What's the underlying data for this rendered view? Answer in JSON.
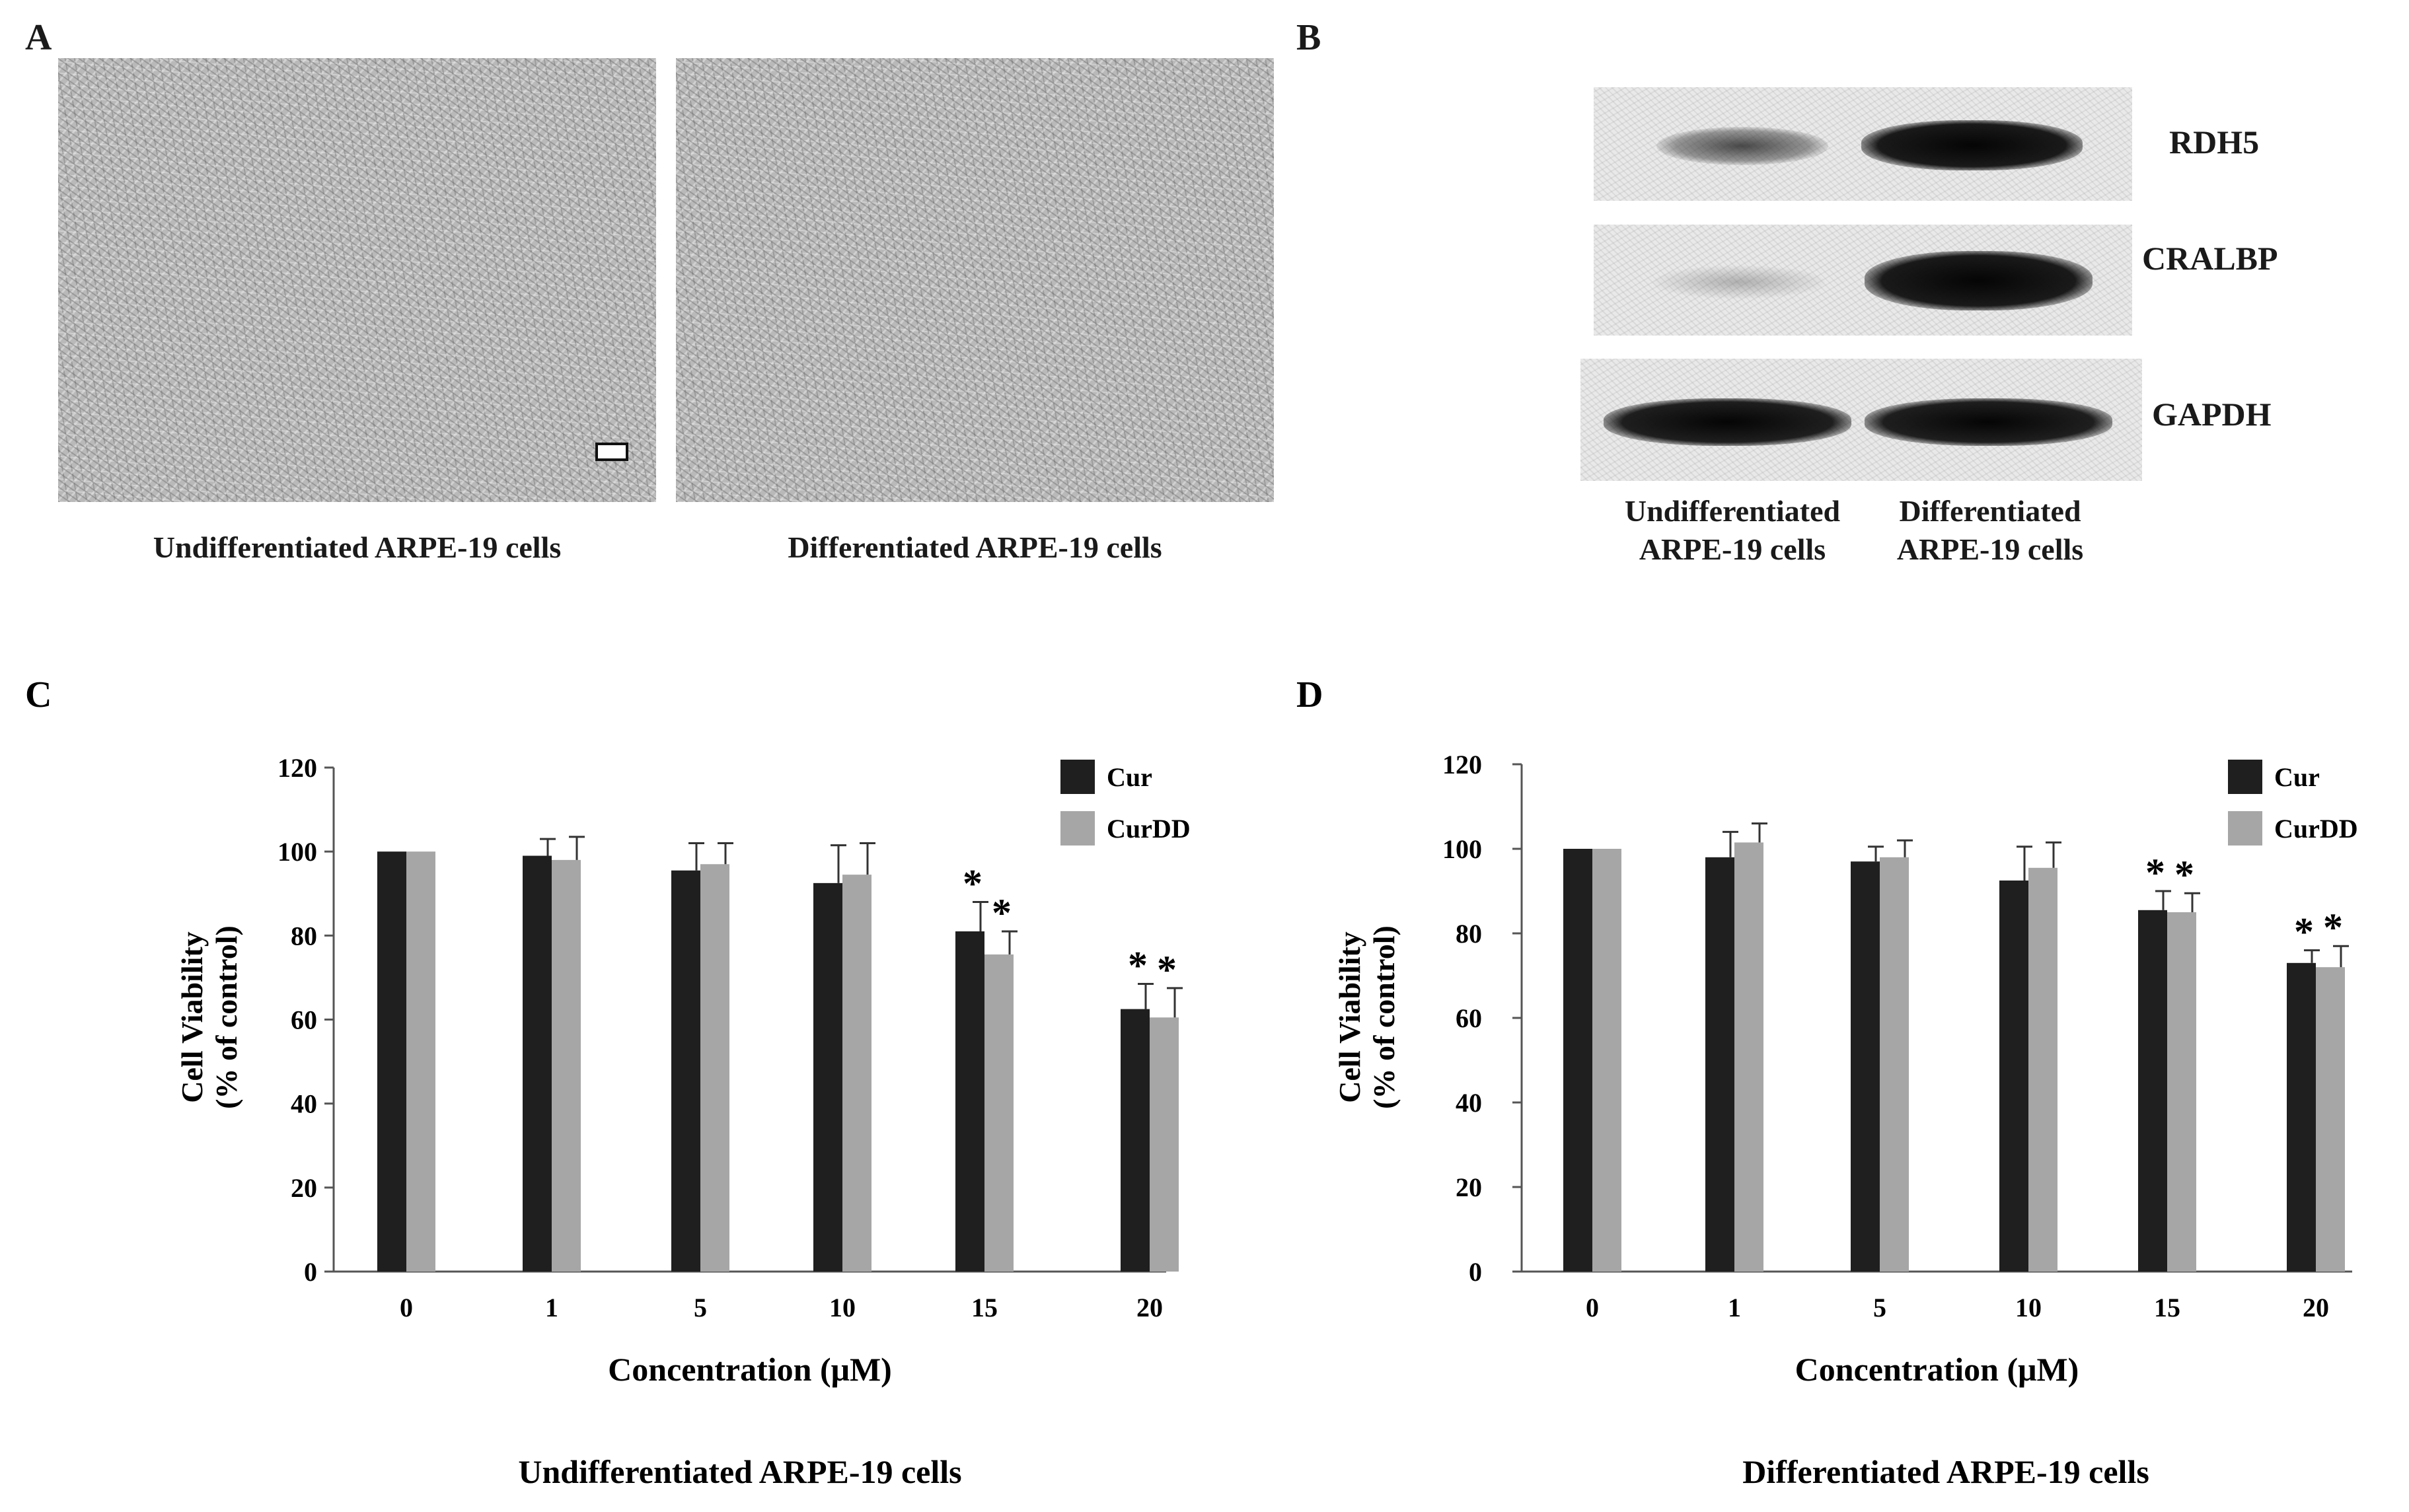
{
  "panel_a": {
    "label": "A",
    "captions": [
      "Undifferentiated ARPE-19 cells",
      "Differentiated ARPE-19 cells"
    ]
  },
  "panel_b": {
    "label": "B",
    "bands": [
      "RDH5",
      "CRALBP",
      "GAPDH"
    ],
    "lanes": [
      [
        "Undifferentiated",
        "ARPE-19 cells"
      ],
      [
        "Differentiated",
        "ARPE-19 cells"
      ]
    ]
  },
  "chart_data": [
    {
      "panel": "C",
      "type": "bar",
      "caption": "Undifferentiated ARPE-19 cells",
      "categories": [
        "0",
        "1",
        "5",
        "10",
        "15",
        "20"
      ],
      "series": [
        {
          "name": "Cur",
          "color": "#1f1f1f",
          "values": [
            100,
            99,
            95.5,
            92.5,
            81,
            62.5
          ],
          "errors": [
            0,
            4,
            6.5,
            9,
            7,
            6
          ],
          "significant": [
            false,
            false,
            false,
            false,
            true,
            true
          ]
        },
        {
          "name": "CurDD",
          "color": "#a6a6a6",
          "values": [
            100,
            98,
            97,
            94.5,
            75.5,
            60.5
          ],
          "errors": [
            0,
            5.5,
            5,
            7.5,
            5.5,
            7
          ],
          "significant": [
            false,
            false,
            false,
            false,
            true,
            true
          ]
        }
      ],
      "significance_marker": "*",
      "xlabel": "Concentration (μM)",
      "ylabel": [
        "Cell Viability",
        "(% of control)"
      ],
      "yticks": [
        "0",
        "20",
        "40",
        "60",
        "80",
        "100",
        "120"
      ],
      "ylim": [
        0,
        120
      ],
      "legend": "top-right"
    },
    {
      "panel": "D",
      "type": "bar",
      "caption": "Differentiated  ARPE-19 cells",
      "categories": [
        "0",
        "1",
        "5",
        "10",
        "15",
        "20"
      ],
      "series": [
        {
          "name": "Cur",
          "color": "#1f1f1f",
          "values": [
            100,
            98,
            97,
            92.5,
            85.5,
            73
          ],
          "errors": [
            0,
            6,
            3.5,
            8,
            4.5,
            3
          ],
          "significant": [
            false,
            false,
            false,
            false,
            true,
            true
          ]
        },
        {
          "name": "CurDD",
          "color": "#a6a6a6",
          "values": [
            100,
            101.5,
            98,
            95.5,
            85,
            72
          ],
          "errors": [
            0,
            4.5,
            4,
            6,
            4.5,
            5
          ],
          "significant": [
            false,
            false,
            false,
            false,
            true,
            true
          ]
        }
      ],
      "significance_marker": "*",
      "xlabel": "Concentration (μM)",
      "ylabel": [
        "Cell Viability",
        "(% of control)"
      ],
      "yticks": [
        "0",
        "20",
        "40",
        "60",
        "80",
        "100",
        "120"
      ],
      "ylim": [
        0,
        120
      ],
      "legend": "top-right"
    }
  ]
}
